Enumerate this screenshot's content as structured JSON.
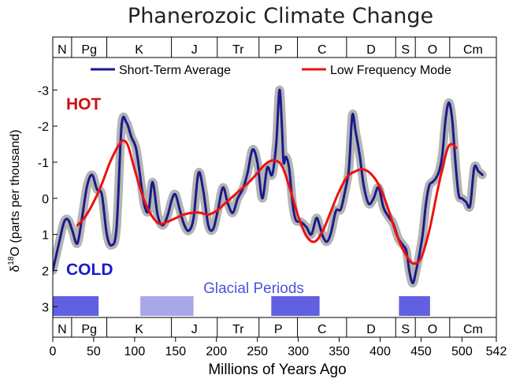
{
  "chart_data": {
    "type": "line",
    "title": "Phanerozoic Climate Change",
    "xlabel": "Millions of Years Ago",
    "ylabel_main": "δ",
    "ylabel_sup": "18",
    "ylabel_rest": "O (parts per thousand)",
    "xlim": [
      0,
      542
    ],
    "ylim": [
      3.3,
      -3.9
    ],
    "y_inverted": true,
    "x_ticks": [
      "0",
      "50",
      "100",
      "150",
      "200",
      "250",
      "300",
      "350",
      "400",
      "450",
      "500",
      "542"
    ],
    "x_tick_values": [
      0,
      50,
      100,
      150,
      200,
      250,
      300,
      350,
      400,
      450,
      500,
      542
    ],
    "y_ticks": [
      "-3",
      "-2",
      "-1",
      "0",
      "1",
      "2",
      "3"
    ],
    "y_tick_values": [
      -3,
      -2,
      -1,
      0,
      1,
      2,
      3
    ],
    "hot_label": "HOT",
    "cold_label": "COLD",
    "glacial_label": "Glacial Periods",
    "periods": [
      {
        "label": "N",
        "start": 0,
        "end": 23
      },
      {
        "label": "Pg",
        "start": 23,
        "end": 66
      },
      {
        "label": "K",
        "start": 66,
        "end": 145
      },
      {
        "label": "J",
        "start": 145,
        "end": 201
      },
      {
        "label": "Tr",
        "start": 201,
        "end": 252
      },
      {
        "label": "P",
        "start": 252,
        "end": 299
      },
      {
        "label": "C",
        "start": 299,
        "end": 359
      },
      {
        "label": "D",
        "start": 359,
        "end": 419
      },
      {
        "label": "S",
        "start": 419,
        "end": 443
      },
      {
        "label": "O",
        "start": 443,
        "end": 485
      },
      {
        "label": "Cm",
        "start": 485,
        "end": 542
      }
    ],
    "glacial_periods": [
      {
        "start": 0,
        "end": 56,
        "strength": "strong"
      },
      {
        "start": 107,
        "end": 172,
        "strength": "weak"
      },
      {
        "start": 267,
        "end": 326,
        "strength": "strong"
      },
      {
        "start": 423,
        "end": 461,
        "strength": "strong"
      }
    ],
    "series": [
      {
        "name": "Short-Term Average",
        "x": [
          0,
          8,
          14,
          19,
          24,
          30,
          36,
          42,
          48,
          54,
          60,
          66,
          72,
          78,
          84,
          90,
          96,
          102,
          108,
          112,
          117,
          122,
          128,
          134,
          140,
          146,
          150,
          155,
          160,
          166,
          172,
          178,
          184,
          190,
          196,
          202,
          208,
          214,
          220,
          226,
          232,
          238,
          244,
          250,
          256,
          262,
          268,
          273,
          277,
          280,
          282,
          285,
          289,
          293,
          297,
          303,
          310,
          316,
          322,
          326,
          330,
          335,
          340,
          346,
          352,
          358,
          362,
          366,
          370,
          375,
          380,
          386,
          392,
          398,
          404,
          410,
          416,
          422,
          428,
          432,
          436,
          440,
          444,
          448,
          452,
          456,
          460,
          464,
          468,
          472,
          476,
          480,
          484,
          488,
          492,
          496,
          500,
          505,
          510,
          515,
          520,
          525
        ],
        "y": [
          2.0,
          1.2,
          0.65,
          0.6,
          0.9,
          1.25,
          0.5,
          -0.35,
          -0.65,
          -0.25,
          -0.1,
          1.0,
          1.3,
          0.8,
          -2.0,
          -2.1,
          -1.7,
          -1.35,
          -0.4,
          0.2,
          0.35,
          -0.45,
          0.45,
          0.75,
          0.5,
          0.0,
          -0.1,
          0.3,
          0.7,
          0.9,
          0.55,
          -0.7,
          -0.2,
          0.75,
          0.85,
          0.3,
          -0.3,
          0.15,
          0.4,
          0.0,
          -0.25,
          -0.7,
          -1.35,
          -1.0,
          0.0,
          -0.85,
          -0.65,
          -1.5,
          -3.0,
          -2.0,
          -1.0,
          -1.15,
          -0.8,
          0.15,
          0.6,
          0.65,
          0.8,
          1.0,
          0.55,
          0.75,
          1.05,
          1.2,
          0.95,
          0.35,
          0.3,
          -0.3,
          -0.85,
          -2.3,
          -1.85,
          -1.2,
          -0.35,
          0.15,
          0.0,
          -0.3,
          0.25,
          0.5,
          0.7,
          1.1,
          1.3,
          1.45,
          2.05,
          2.35,
          2.0,
          1.55,
          1.0,
          0.15,
          -0.35,
          -0.45,
          -0.55,
          -0.75,
          -1.2,
          -2.2,
          -2.65,
          -2.2,
          -1.0,
          -0.1,
          0.0,
          0.1,
          0.2,
          -0.85,
          -0.75,
          -0.65
        ]
      },
      {
        "name": "Low Frequency Mode",
        "x": [
          30,
          40,
          50,
          60,
          70,
          80,
          86,
          92,
          100,
          110,
          120,
          130,
          140,
          150,
          160,
          170,
          180,
          190,
          200,
          210,
          220,
          230,
          240,
          250,
          260,
          270,
          280,
          290,
          300,
          310,
          320,
          330,
          340,
          350,
          360,
          370,
          380,
          390,
          400,
          410,
          420,
          430,
          440,
          450,
          460,
          470,
          480,
          486,
          493
        ],
        "y": [
          0.75,
          0.5,
          0.1,
          -0.4,
          -1.0,
          -1.45,
          -1.6,
          -1.45,
          -0.8,
          -0.05,
          0.45,
          0.7,
          0.65,
          0.55,
          0.45,
          0.4,
          0.4,
          0.45,
          0.35,
          0.15,
          -0.05,
          -0.25,
          -0.45,
          -0.7,
          -0.95,
          -1.05,
          -0.9,
          -0.25,
          0.5,
          1.05,
          1.2,
          0.9,
          0.35,
          -0.2,
          -0.6,
          -0.75,
          -0.8,
          -0.65,
          -0.3,
          0.3,
          1.0,
          1.5,
          1.8,
          1.65,
          0.9,
          -0.2,
          -1.2,
          -1.5,
          -1.4
        ]
      }
    ],
    "legend_position": "top",
    "colors": {
      "short_term": "#1a1a8c",
      "low_freq": "#ee1111",
      "uncertainty": "#b4b4b4",
      "hot": "#cc1111",
      "cold": "#1a1acc",
      "glacial_strong": "#6060e0",
      "glacial_weak": "#a8a8e8",
      "glacial_text": "#5050e0"
    }
  }
}
